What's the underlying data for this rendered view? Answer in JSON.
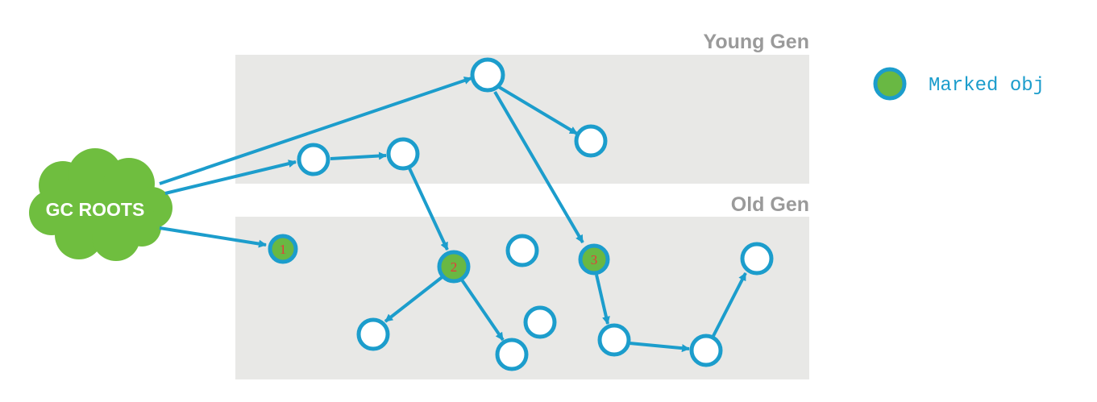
{
  "regions": {
    "young_gen": "Young Gen",
    "old_gen": "Old Gen"
  },
  "roots": {
    "label": "GC ROOTS"
  },
  "legend": {
    "label": "Marked obj"
  },
  "marked_objects": [
    "1",
    "2",
    "3"
  ],
  "colors": {
    "edge": "#1c9dcc",
    "marked_fill": "#69b843",
    "root_cloud": "#6fbe3f",
    "region_bg": "#e8e8e6",
    "region_label": "#9a9a9a",
    "marker_number": "#e8393a"
  }
}
